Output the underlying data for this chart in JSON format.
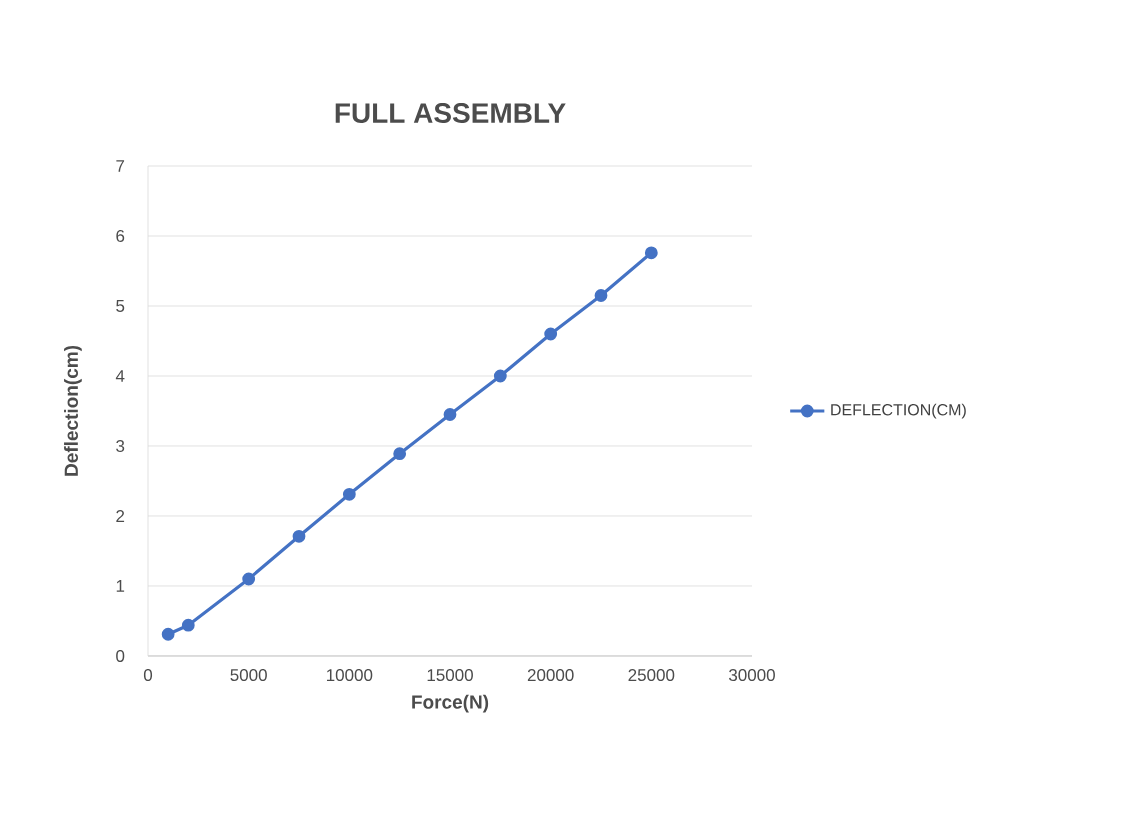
{
  "chart_data": {
    "type": "line",
    "title": "FULL ASSEMBLY",
    "xlabel": "Force(N)",
    "ylabel": "Deflection(cm)",
    "x": [
      1000,
      2000,
      5000,
      7500,
      10000,
      12500,
      15000,
      17500,
      20000,
      22500,
      25000
    ],
    "series": [
      {
        "name": "DEFLECTION(CM)",
        "color": "#4472c4",
        "values": [
          0.31,
          0.44,
          1.1,
          1.71,
          2.31,
          2.89,
          3.45,
          4.0,
          4.6,
          5.15,
          5.76
        ]
      }
    ],
    "xlim": [
      0,
      30000
    ],
    "xticks": [
      0,
      5000,
      10000,
      15000,
      20000,
      25000,
      30000
    ],
    "ylim": [
      0,
      7
    ],
    "yticks": [
      0,
      1,
      2,
      3,
      4,
      5,
      6,
      7
    ],
    "grid": "y",
    "legend": "right",
    "marker": "circle",
    "line_style": "solid"
  }
}
